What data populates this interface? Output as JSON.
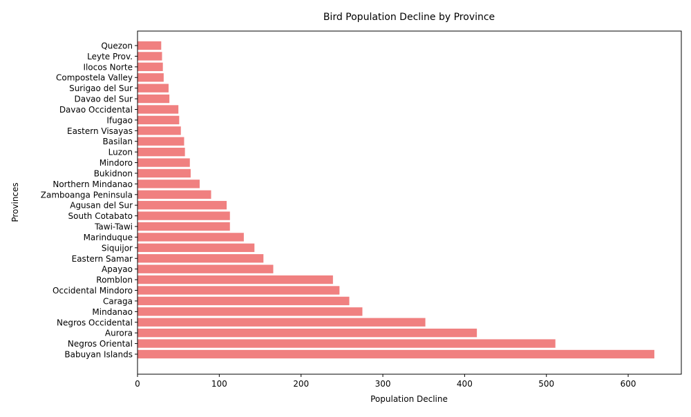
{
  "chart_data": {
    "type": "bar",
    "orientation": "horizontal",
    "title": "Bird Population Decline by Province",
    "xlabel": "Population Decline",
    "ylabel": "Provinces",
    "xlim": [
      0,
      665
    ],
    "xticks": [
      0,
      100,
      200,
      300,
      400,
      500,
      600
    ],
    "grid": false,
    "bar_color": "#f08080",
    "categories": [
      "Babuyan Islands",
      "Negros Oriental",
      "Aurora",
      "Negros Occidental",
      "Mindanao",
      "Caraga",
      "Occidental Mindoro",
      "Romblon",
      "Apayao",
      "Eastern Samar",
      "Siquijor",
      "Marinduque",
      "Tawi-Tawi",
      "South Cotabato",
      "Agusan del Sur",
      "Zamboanga Peninsula",
      "Northern Mindanao",
      "Bukidnon",
      "Mindoro",
      "Luzon",
      "Basilan",
      "Eastern Visayas",
      "Ifugao",
      "Davao Occidental",
      "Davao del Sur",
      "Surigao del Sur",
      "Compostela Valley",
      "Ilocos Norte",
      "Leyte Prov.",
      "Quezon"
    ],
    "values": [
      632,
      511,
      415,
      352,
      275,
      259,
      247,
      239,
      166,
      154,
      143,
      130,
      113,
      113,
      109,
      90,
      76,
      65,
      64,
      58,
      57,
      53,
      51,
      50,
      39,
      38,
      32,
      31,
      30,
      29
    ]
  }
}
